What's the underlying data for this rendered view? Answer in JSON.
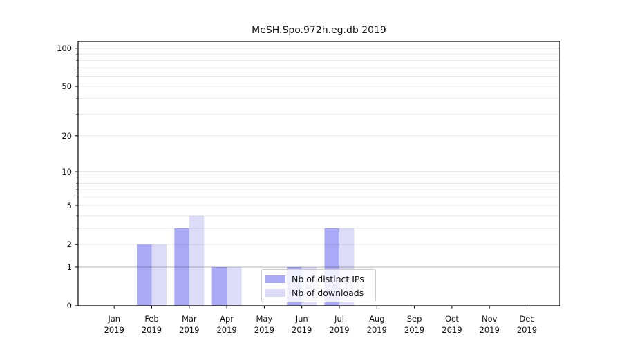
{
  "chart_data": {
    "type": "bar",
    "title": "MeSH.Spo.972h.eg.db 2019",
    "categories": [
      "Jan",
      "Feb",
      "Mar",
      "Apr",
      "May",
      "Jun",
      "Jul",
      "Aug",
      "Sep",
      "Oct",
      "Nov",
      "Dec"
    ],
    "year_label": "2019",
    "series": [
      {
        "name": "Nb of distinct IPs",
        "color": "#a9a9f5",
        "values": [
          0,
          2,
          3,
          1,
          0,
          1,
          3,
          0,
          0,
          0,
          0,
          0
        ]
      },
      {
        "name": "Nb of downloads",
        "color": "#dcdcf9",
        "values": [
          0,
          2,
          4,
          1,
          0,
          1,
          3,
          0,
          0,
          0,
          0,
          0
        ]
      }
    ],
    "yscale": "log1p",
    "ylim": [
      0,
      113
    ],
    "y_ticks": [
      0,
      1,
      2,
      5,
      10,
      20,
      50,
      100
    ],
    "grid": {
      "major": [
        1,
        10,
        100
      ],
      "minor": [
        2,
        3,
        4,
        5,
        6,
        7,
        8,
        9,
        20,
        30,
        40,
        50,
        60,
        70,
        80,
        90
      ]
    },
    "legend_position": "lower center",
    "xlabel": "",
    "ylabel": ""
  },
  "colors": {
    "axis": "#000000",
    "tick_text": "#111111",
    "grid_major": "rgba(0,0,0,0.27)",
    "grid_minor": "rgba(0,0,0,0.09)",
    "background": "#ffffff"
  }
}
